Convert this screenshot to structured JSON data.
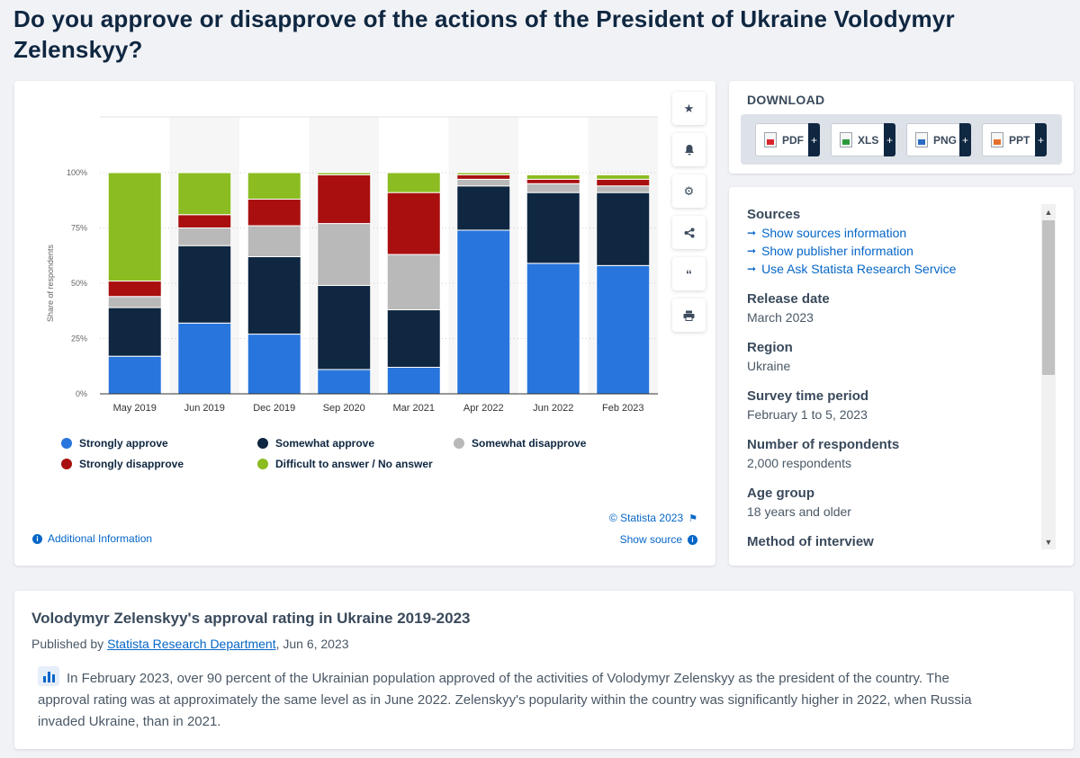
{
  "page": {
    "title": "Do you approve or disapprove of the actions of the President of Ukraine Volodymyr Zelenskyy?"
  },
  "chart_data": {
    "type": "bar",
    "stacked": true,
    "categories": [
      "May 2019",
      "Jun 2019",
      "Dec 2019",
      "Sep 2020",
      "Mar 2021",
      "Apr 2022",
      "Jun 2022",
      "Feb 2023"
    ],
    "series": [
      {
        "name": "Strongly approve",
        "color": "#2876dd",
        "values": [
          17,
          32,
          27,
          11,
          12,
          74,
          59,
          58
        ]
      },
      {
        "name": "Somewhat approve",
        "color": "#0f2741",
        "values": [
          22,
          35,
          35,
          38,
          26,
          20,
          32,
          33
        ]
      },
      {
        "name": "Somewhat disapprove",
        "color": "#b9b9b9",
        "values": [
          5,
          8,
          14,
          28,
          25,
          3,
          4,
          3
        ]
      },
      {
        "name": "Strongly disapprove",
        "color": "#a90f0f",
        "values": [
          7,
          6,
          12,
          22,
          28,
          2,
          2,
          3
        ]
      },
      {
        "name": "Difficult to answer / No answer",
        "color": "#8bbc21",
        "values": [
          49,
          19,
          12,
          1,
          9,
          1,
          2,
          2
        ]
      }
    ],
    "ylabel": "Share of respondents",
    "xlabel": "",
    "ylim": [
      0,
      100
    ],
    "yticks": [
      "0%",
      "25%",
      "50%",
      "75%",
      "100%"
    ],
    "grid": true,
    "legend": "bottom",
    "copyright": "© Statista 2023"
  },
  "chart_links": {
    "additional_info": "Additional Information",
    "show_source": "Show source"
  },
  "tools": [
    "star-icon",
    "bell-icon",
    "gear-icon",
    "share-icon",
    "quote-icon",
    "print-icon"
  ],
  "download": {
    "title": "DOWNLOAD",
    "formats": [
      "PDF",
      "XLS",
      "PNG",
      "PPT"
    ],
    "plus": "+"
  },
  "info": {
    "sources_heading": "Sources",
    "source_links": [
      "Show sources information",
      "Show publisher information",
      "Use Ask Statista Research Service"
    ],
    "release_heading": "Release date",
    "release_value": "March 2023",
    "region_heading": "Region",
    "region_value": "Ukraine",
    "period_heading": "Survey time period",
    "period_value": "February 1 to 5, 2023",
    "respondents_heading": "Number of respondents",
    "respondents_value": "2,000 respondents",
    "age_heading": "Age group",
    "age_value": "18 years and older",
    "method_heading": "Method of interview"
  },
  "description": {
    "title": "Volodymyr Zelenskyy's approval rating in Ukraine 2019-2023",
    "published_prefix": "Published by",
    "publisher": "Statista Research Department",
    "published_date": ", Jun 6, 2023",
    "text": "In February 2023, over 90 percent of the Ukrainian population approved of the activities of Volodymyr Zelenskyy as the president of the country. The approval rating was at approximately the same level as in June 2022. Zelenskyy's popularity within the country was significantly higher in 2022, when Russia invaded Ukraine, than in 2021."
  }
}
